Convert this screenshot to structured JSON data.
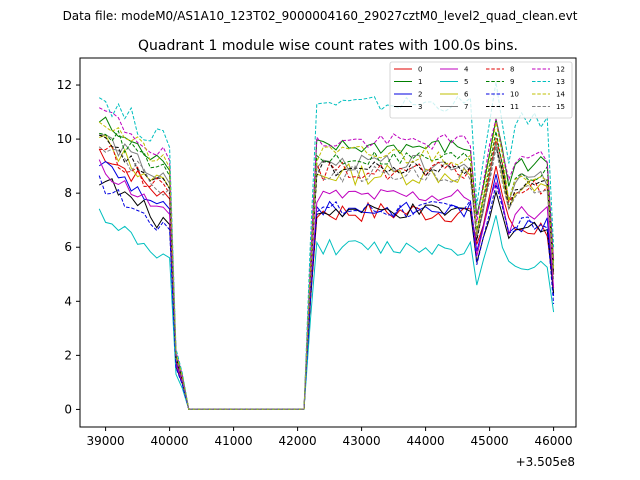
{
  "figure": {
    "suptitle": "Data file: modeM0/AS1A10_123T02_9000004160_29027cztM0_level2_quad_clean.evt"
  },
  "chart_data": {
    "type": "line",
    "title": "Quadrant 1 module wise count rates with 100.0s bins.",
    "xlabel": "",
    "ylabel": "",
    "x_offset_label": "+3.505e8",
    "xlim": [
      38600,
      46350
    ],
    "ylim": [
      -0.65,
      13.0
    ],
    "xticks": [
      39000,
      40000,
      41000,
      42000,
      43000,
      44000,
      45000,
      46000
    ],
    "xtick_labels": [
      "39000",
      "40000",
      "41000",
      "42000",
      "43000",
      "44000",
      "45000",
      "46000"
    ],
    "yticks": [
      0,
      2,
      4,
      6,
      8,
      10,
      12
    ],
    "ytick_labels": [
      "0",
      "2",
      "4",
      "6",
      "8",
      "10",
      "12"
    ],
    "grid": false,
    "legend": {
      "position": "top-right",
      "columns": 4
    },
    "x_start": 38900,
    "x_step": 100,
    "gap": {
      "fall_start": 40000,
      "zero_from": 40300,
      "zero_to": 42100,
      "rise_end": 42300
    },
    "series": [
      {
        "name": "0",
        "color": "#e00000",
        "dash": "solid",
        "base1": 8.2,
        "noise1": 0.35,
        "base2": 7.3,
        "noise2": 0.4,
        "peak": 9.0,
        "last": 4.5
      },
      {
        "name": "1",
        "color": "#007f00",
        "dash": "solid",
        "base1": 9.3,
        "noise1": 0.35,
        "base2": 9.7,
        "noise2": 0.3,
        "peak": 10.8,
        "last": 5.5
      },
      {
        "name": "2",
        "color": "#0000e0",
        "dash": "solid",
        "base1": 7.8,
        "noise1": 0.35,
        "base2": 7.4,
        "noise2": 0.3,
        "peak": 8.8,
        "last": 4.2
      },
      {
        "name": "3",
        "color": "#000000",
        "dash": "solid",
        "base1": 7.2,
        "noise1": 0.35,
        "base2": 7.3,
        "noise2": 0.3,
        "peak": 8.2,
        "last": 4.3
      },
      {
        "name": "4",
        "color": "#bf00bf",
        "dash": "solid",
        "base1": 7.6,
        "noise1": 0.3,
        "base2": 7.9,
        "noise2": 0.3,
        "peak": 8.6,
        "last": 4.5
      },
      {
        "name": "5",
        "color": "#00bfbf",
        "dash": "solid",
        "base1": 5.9,
        "noise1": 0.25,
        "base2": 6.0,
        "noise2": 0.3,
        "peak": 7.0,
        "last": 3.6
      },
      {
        "name": "6",
        "color": "#bfbf00",
        "dash": "solid",
        "base1": 8.6,
        "noise1": 0.4,
        "base2": 8.7,
        "noise2": 0.4,
        "peak": 9.8,
        "last": 5.0
      },
      {
        "name": "7",
        "color": "#7f7f7f",
        "dash": "solid",
        "base1": 8.8,
        "noise1": 0.35,
        "base2": 9.1,
        "noise2": 0.3,
        "peak": 9.8,
        "last": 5.0
      },
      {
        "name": "8",
        "color": "#e00000",
        "dash": "dashed",
        "base1": 8.4,
        "noise1": 0.35,
        "base2": 8.8,
        "noise2": 0.35,
        "peak": 10.0,
        "last": 5.0
      },
      {
        "name": "9",
        "color": "#007f00",
        "dash": "dashed",
        "base1": 9.1,
        "noise1": 0.35,
        "base2": 9.3,
        "noise2": 0.3,
        "peak": 10.3,
        "last": 5.3
      },
      {
        "name": "10",
        "color": "#0000e0",
        "dash": "dashed",
        "base1": 7.0,
        "noise1": 0.3,
        "base2": 7.4,
        "noise2": 0.35,
        "peak": 8.4,
        "last": 3.9
      },
      {
        "name": "11",
        "color": "#000000",
        "dash": "dashed",
        "base1": 8.6,
        "noise1": 0.3,
        "base2": 8.9,
        "noise2": 0.3,
        "peak": 9.8,
        "last": 5.0
      },
      {
        "name": "12",
        "color": "#bf00bf",
        "dash": "dashed",
        "base1": 9.7,
        "noise1": 0.35,
        "base2": 9.9,
        "noise2": 0.3,
        "peak": 10.9,
        "last": 5.5
      },
      {
        "name": "13",
        "color": "#00bfbf",
        "dash": "dashed",
        "base1": 10.2,
        "noise1": 0.45,
        "base2": 11.3,
        "noise2": 0.3,
        "peak": 11.9,
        "last": 6.0
      },
      {
        "name": "14",
        "color": "#bfbf00",
        "dash": "dashed",
        "base1": 9.4,
        "noise1": 0.35,
        "base2": 9.4,
        "noise2": 0.4,
        "peak": 10.4,
        "last": 5.2
      },
      {
        "name": "15",
        "color": "#7f7f7f",
        "dash": "dashed",
        "base1": 8.6,
        "noise1": 0.35,
        "base2": 8.7,
        "noise2": 0.3,
        "peak": 9.6,
        "last": 4.8
      }
    ]
  }
}
